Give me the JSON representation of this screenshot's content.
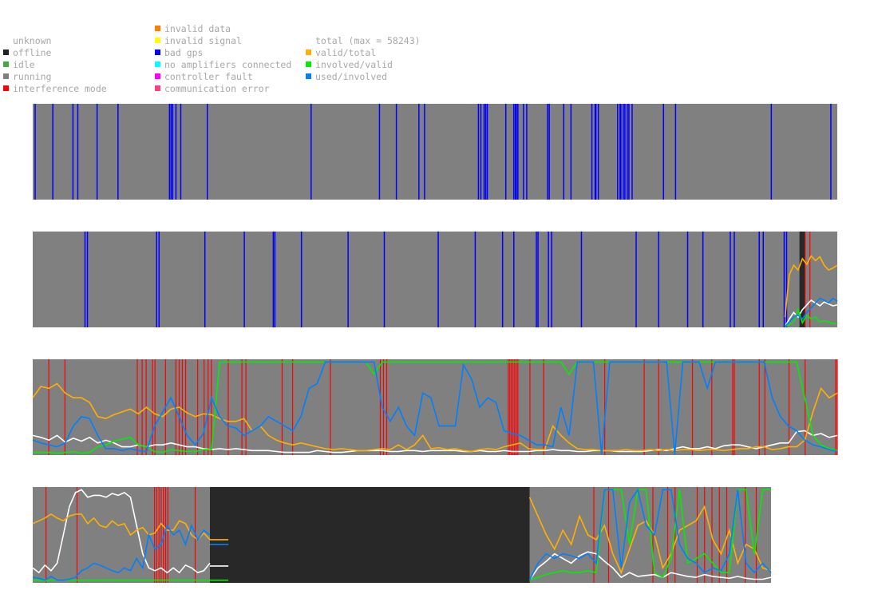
{
  "legend": {
    "status": [
      {
        "label": "unknown",
        "color": null
      },
      {
        "label": "offline",
        "color": "#222222"
      },
      {
        "label": "idle",
        "color": "#44aa44"
      },
      {
        "label": "running",
        "color": "#808080"
      },
      {
        "label": "interference mode",
        "color": "#ff0000"
      }
    ],
    "errors": [
      {
        "label": "invalid data",
        "color": "#ff8000"
      },
      {
        "label": "invalid signal",
        "color": "#ffff00"
      },
      {
        "label": "bad gps",
        "color": "#0000ff"
      },
      {
        "label": "no amplifiers connected",
        "color": "#00ffff"
      },
      {
        "label": "controller fault",
        "color": "#ff00ff"
      },
      {
        "label": "communication error",
        "color": "#ff4080"
      }
    ],
    "metrics": [
      {
        "label": "total (max = 58243)",
        "color": null
      },
      {
        "label": "valid/total",
        "color": "#ffb000"
      },
      {
        "label": "involved/valid",
        "color": "#00ee00"
      },
      {
        "label": "used/involved",
        "color": "#0080ff"
      }
    ]
  },
  "colors": {
    "running": "#808080",
    "offline": "#282828",
    "bad_gps": "#0000ff",
    "interference": "#ff0000",
    "total": "#ffffff",
    "valid_total": "#ffb000",
    "involved_valid": "#00ee00",
    "used_involved": "#0080ff"
  },
  "chart_data": {
    "type": "line",
    "x_range": [
      0,
      1
    ],
    "y_range": [
      0,
      1
    ],
    "strips": [
      {
        "bad_gps_events": [
          0.003,
          0.025,
          0.05,
          0.056,
          0.08,
          0.106,
          0.17,
          0.172,
          0.174,
          0.178,
          0.184,
          0.217,
          0.346,
          0.431,
          0.452,
          0.48,
          0.487,
          0.554,
          0.557,
          0.561,
          0.563,
          0.565,
          0.588,
          0.598,
          0.6,
          0.601,
          0.603,
          0.61,
          0.614,
          0.64,
          0.642,
          0.66,
          0.669,
          0.695,
          0.699,
          0.7,
          0.703,
          0.727,
          0.73,
          0.731,
          0.734,
          0.736,
          0.739,
          0.741,
          0.745,
          0.784,
          0.799,
          0.918,
          0.992
        ],
        "interference_events": [],
        "offline_ranges": [],
        "series": null
      },
      {
        "bad_gps_events": [
          0.065,
          0.068,
          0.154,
          0.157,
          0.214,
          0.263,
          0.299,
          0.301,
          0.334,
          0.392,
          0.437,
          0.504,
          0.55,
          0.584,
          0.598,
          0.626,
          0.628,
          0.641,
          0.645,
          0.682,
          0.75,
          0.778,
          0.814,
          0.833,
          0.867,
          0.872,
          0.903,
          0.908,
          0.934,
          0.937
        ],
        "interference_events": [
          0.96,
          0.966
        ],
        "offline_ranges": [
          [
            0.953,
            0.96
          ]
        ],
        "series": {
          "start": 0.935,
          "total": [
            0.0,
            0.08,
            0.15,
            0.1,
            0.18,
            0.23,
            0.28,
            0.25,
            0.22,
            0.26,
            0.24,
            0.22,
            0.23
          ],
          "valid_total": [
            0.1,
            0.55,
            0.65,
            0.6,
            0.72,
            0.66,
            0.75,
            0.7,
            0.74,
            0.65,
            0.6,
            0.62,
            0.65
          ],
          "involved_valid": [
            0.0,
            0.02,
            0.05,
            0.18,
            0.04,
            0.12,
            0.08,
            0.1,
            0.05,
            0.06,
            0.05,
            0.03,
            0.03
          ],
          "used_involved": [
            0.0,
            0.05,
            0.1,
            0.12,
            0.08,
            0.15,
            0.2,
            0.25,
            0.3,
            0.28,
            0.25,
            0.3,
            0.27
          ]
        }
      },
      {
        "bad_gps_events": [],
        "interference_events": [
          0.02,
          0.04,
          0.13,
          0.136,
          0.141,
          0.149,
          0.152,
          0.165,
          0.178,
          0.182,
          0.186,
          0.19,
          0.205,
          0.213,
          0.218,
          0.222,
          0.243,
          0.26,
          0.265,
          0.31,
          0.323,
          0.37,
          0.432,
          0.436,
          0.44,
          0.591,
          0.593,
          0.595,
          0.597,
          0.599,
          0.601,
          0.603,
          0.618,
          0.635,
          0.711,
          0.76,
          0.778,
          0.82,
          0.844,
          0.872,
          0.87,
          0.903,
          0.91,
          0.94,
          0.96,
          0.998,
          1.0
        ],
        "offline_ranges": [],
        "series": {
          "start": 0.0,
          "total": [
            0.2,
            0.18,
            0.15,
            0.2,
            0.13,
            0.17,
            0.14,
            0.18,
            0.12,
            0.15,
            0.12,
            0.08,
            0.08,
            0.1,
            0.08,
            0.1,
            0.1,
            0.12,
            0.1,
            0.08,
            0.08,
            0.06,
            0.05,
            0.06,
            0.05,
            0.06,
            0.05,
            0.04,
            0.04,
            0.04,
            0.03,
            0.02,
            0.02,
            0.02,
            0.02,
            0.04,
            0.03,
            0.02,
            0.02,
            0.03,
            0.04,
            0.04,
            0.04,
            0.04,
            0.03,
            0.03,
            0.04,
            0.04,
            0.03,
            0.04,
            0.04,
            0.04,
            0.04,
            0.03,
            0.03,
            0.04,
            0.03,
            0.03,
            0.04,
            0.03,
            0.03,
            0.03,
            0.04,
            0.04,
            0.05,
            0.04,
            0.04,
            0.03,
            0.03,
            0.04,
            0.04,
            0.04,
            0.03,
            0.03,
            0.03,
            0.03,
            0.04,
            0.05,
            0.04,
            0.06,
            0.08,
            0.06,
            0.06,
            0.08,
            0.06,
            0.09,
            0.1,
            0.1,
            0.08,
            0.06,
            0.08,
            0.1,
            0.12,
            0.12,
            0.24,
            0.25,
            0.2,
            0.22,
            0.18,
            0.2
          ],
          "valid_total": [
            0.6,
            0.72,
            0.7,
            0.75,
            0.65,
            0.6,
            0.6,
            0.55,
            0.4,
            0.38,
            0.42,
            0.45,
            0.48,
            0.43,
            0.5,
            0.43,
            0.4,
            0.48,
            0.5,
            0.44,
            0.4,
            0.43,
            0.42,
            0.38,
            0.35,
            0.35,
            0.38,
            0.25,
            0.3,
            0.2,
            0.15,
            0.12,
            0.1,
            0.12,
            0.1,
            0.08,
            0.06,
            0.05,
            0.06,
            0.05,
            0.04,
            0.04,
            0.05,
            0.06,
            0.05,
            0.1,
            0.05,
            0.1,
            0.2,
            0.06,
            0.07,
            0.05,
            0.06,
            0.04,
            0.03,
            0.05,
            0.06,
            0.05,
            0.08,
            0.1,
            0.12,
            0.06,
            0.05,
            0.05,
            0.3,
            0.2,
            0.12,
            0.06,
            0.05,
            0.05,
            0.04,
            0.04,
            0.04,
            0.05,
            0.04,
            0.04,
            0.05,
            0.04,
            0.05,
            0.04,
            0.05,
            0.05,
            0.04,
            0.05,
            0.05,
            0.04,
            0.05,
            0.06,
            0.06,
            0.08,
            0.08,
            0.05,
            0.06,
            0.08,
            0.08,
            0.15,
            0.45,
            0.7,
            0.6,
            0.65
          ],
          "involved_valid": [
            0.02,
            0.02,
            0.02,
            0.01,
            0.02,
            0.03,
            0.01,
            0.02,
            0.08,
            0.1,
            0.14,
            0.16,
            0.18,
            0.1,
            0.08,
            0.03,
            0.02,
            0.05,
            0.04,
            0.03,
            0.03,
            0.05,
            0.05,
            0.98,
            0.98,
            0.98,
            0.98,
            0.98,
            0.98,
            0.98,
            0.98,
            0.98,
            0.98,
            0.98,
            0.98,
            0.98,
            0.98,
            0.98,
            0.98,
            0.98,
            0.98,
            0.98,
            0.85,
            0.98,
            0.98,
            0.98,
            0.98,
            0.98,
            0.98,
            0.98,
            0.98,
            0.98,
            0.98,
            0.98,
            0.98,
            0.98,
            0.98,
            0.98,
            0.98,
            0.98,
            0.98,
            0.98,
            0.98,
            0.98,
            0.98,
            0.98,
            0.85,
            0.98,
            0.98,
            0.98,
            0.98,
            0.98,
            0.98,
            0.98,
            0.98,
            0.98,
            0.98,
            0.98,
            0.98,
            0.98,
            0.98,
            0.98,
            0.98,
            0.98,
            0.98,
            0.98,
            0.98,
            0.98,
            0.98,
            0.98,
            0.98,
            0.98,
            0.98,
            0.98,
            0.98,
            0.6,
            0.2,
            0.1,
            0.06,
            0.04
          ],
          "used_involved": [
            0.15,
            0.12,
            0.1,
            0.08,
            0.12,
            0.3,
            0.4,
            0.38,
            0.2,
            0.06,
            0.06,
            0.04,
            0.06,
            0.04,
            0.03,
            0.3,
            0.45,
            0.6,
            0.4,
            0.2,
            0.1,
            0.22,
            0.6,
            0.4,
            0.3,
            0.28,
            0.2,
            0.25,
            0.3,
            0.4,
            0.35,
            0.3,
            0.25,
            0.4,
            0.7,
            0.75,
            0.98,
            0.98,
            0.98,
            0.98,
            0.98,
            0.98,
            0.98,
            0.5,
            0.35,
            0.5,
            0.3,
            0.2,
            0.65,
            0.6,
            0.3,
            0.3,
            0.3,
            0.95,
            0.8,
            0.5,
            0.6,
            0.55,
            0.25,
            0.22,
            0.2,
            0.15,
            0.1,
            0.1,
            0.08,
            0.5,
            0.2,
            0.98,
            0.98,
            0.98,
            0.0,
            0.98,
            0.98,
            0.98,
            0.98,
            0.98,
            0.98,
            0.98,
            0.98,
            0.0,
            0.98,
            0.98,
            0.98,
            0.7,
            0.98,
            0.98,
            0.98,
            0.98,
            0.98,
            0.98,
            0.98,
            0.6,
            0.4,
            0.3,
            0.25,
            0.15,
            0.1,
            0.08,
            0.05,
            0.03
          ]
        }
      },
      {
        "bad_gps_events": [],
        "interference_events": [
          0.018,
          0.06,
          0.165,
          0.168,
          0.171,
          0.174,
          0.177,
          0.18,
          0.183,
          0.22,
          0.76,
          0.78,
          0.84,
          0.86,
          0.87,
          0.9,
          0.91,
          0.92,
          0.93,
          0.94,
          0.965,
          0.98
        ],
        "offline_ranges": [
          [
            0.24,
            0.673
          ]
        ],
        "extra_stub_range": [
          0.24,
          0.265
        ],
        "series": {
          "start": 0.0,
          "total": [
            0.15,
            0.1,
            0.18,
            0.12,
            0.2,
            0.5,
            0.8,
            0.95,
            0.98,
            0.9,
            0.92,
            0.92,
            0.9,
            0.94,
            0.92,
            0.95,
            0.9,
            0.6,
            0.3,
            0.15,
            0.12,
            0.15,
            0.1,
            0.15,
            0.1,
            0.18,
            0.15,
            0.1,
            0.12,
            0.2
          ],
          "valid_total": [
            0.62,
            0.65,
            0.68,
            0.72,
            0.68,
            0.65,
            0.7,
            0.72,
            0.72,
            0.62,
            0.68,
            0.6,
            0.58,
            0.65,
            0.6,
            0.62,
            0.5,
            0.55,
            0.58,
            0.5,
            0.52,
            0.62,
            0.55,
            0.55,
            0.65,
            0.62,
            0.5,
            0.45,
            0.52,
            0.45
          ],
          "involved_valid": [
            0.02,
            0.02,
            0.01,
            0.02,
            0.02,
            0.02,
            0.02,
            0.02,
            0.02,
            0.02,
            0.02,
            0.02,
            0.02,
            0.02,
            0.02,
            0.02,
            0.02,
            0.02,
            0.02,
            0.02,
            0.02,
            0.02,
            0.02,
            0.02,
            0.02,
            0.02,
            0.02,
            0.02,
            0.02,
            0.02
          ],
          "used_involved": [
            0.05,
            0.04,
            0.02,
            0.06,
            0.02,
            0.02,
            0.03,
            0.05,
            0.12,
            0.15,
            0.2,
            0.18,
            0.15,
            0.12,
            0.1,
            0.15,
            0.12,
            0.25,
            0.15,
            0.5,
            0.35,
            0.4,
            0.6,
            0.5,
            0.55,
            0.4,
            0.6,
            0.45,
            0.55,
            0.5
          ],
          "segment2": {
            "start": 0.673,
            "end": 1.0,
            "total": [
              0.02,
              0.15,
              0.22,
              0.3,
              0.25,
              0.2,
              0.28,
              0.32,
              0.3,
              0.22,
              0.15,
              0.05,
              0.1,
              0.06,
              0.07,
              0.08,
              0.05,
              0.1,
              0.08,
              0.06,
              0.05,
              0.08,
              0.06,
              0.05,
              0.04,
              0.06,
              0.04,
              0.03,
              0.03,
              0.05
            ],
            "valid_total": [
              0.9,
              0.7,
              0.5,
              0.35,
              0.55,
              0.4,
              0.7,
              0.5,
              0.45,
              0.6,
              0.3,
              0.1,
              0.35,
              0.6,
              0.65,
              0.5,
              0.15,
              0.3,
              0.55,
              0.6,
              0.65,
              0.8,
              0.45,
              0.3,
              0.55,
              0.2,
              0.4,
              0.35,
              0.15,
              0.12
            ],
            "involved_valid": [
              0.02,
              0.05,
              0.08,
              0.1,
              0.12,
              0.1,
              0.1,
              0.12,
              0.1,
              0.98,
              0.98,
              0.98,
              0.4,
              0.98,
              0.98,
              0.1,
              0.05,
              0.25,
              0.98,
              0.2,
              0.25,
              0.3,
              0.2,
              0.1,
              0.1,
              0.98,
              0.98,
              0.3,
              0.98,
              0.98
            ],
            "used_involved": [
              0.02,
              0.2,
              0.3,
              0.25,
              0.3,
              0.28,
              0.25,
              0.3,
              0.2,
              0.98,
              0.98,
              0.15,
              0.85,
              0.98,
              0.6,
              0.5,
              0.98,
              0.98,
              0.4,
              0.25,
              0.2,
              0.1,
              0.15,
              0.12,
              0.3,
              0.98,
              0.2,
              0.1,
              0.2,
              0.1
            ]
          }
        }
      }
    ]
  }
}
